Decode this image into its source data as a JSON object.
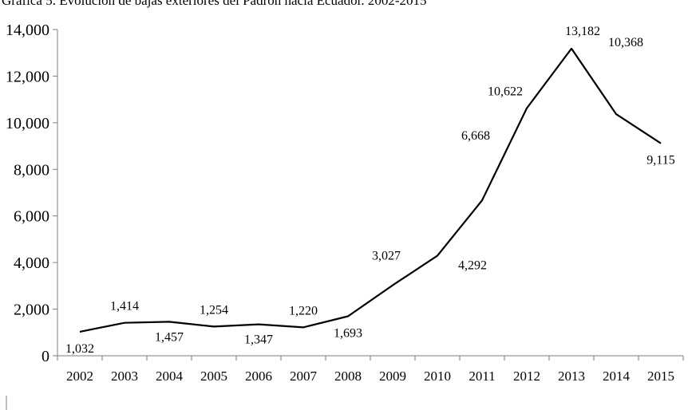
{
  "chart_data": {
    "type": "line",
    "title": "Gráfica 5. Evolución de bajas exteriores del Padrón hacia Ecuador. 2002-2015",
    "xlabel": "",
    "ylabel": "",
    "categories": [
      "2002",
      "2003",
      "2004",
      "2005",
      "2006",
      "2007",
      "2008",
      "2009",
      "2010",
      "2011",
      "2012",
      "2013",
      "2014",
      "2015"
    ],
    "values": [
      1032,
      1414,
      1457,
      1254,
      1347,
      1220,
      1693,
      3027,
      4292,
      6668,
      10622,
      13182,
      10368,
      9115
    ],
    "data_labels": [
      "1,032",
      "1,414",
      "1,457",
      "1,254",
      "1,347",
      "1,220",
      "1,693",
      "3,027",
      "4,292",
      "6,668",
      "10,622",
      "13,182",
      "10,368",
      "9,115"
    ],
    "ylim": [
      0,
      14000
    ],
    "yticks": [
      0,
      2000,
      4000,
      6000,
      8000,
      10000,
      12000,
      14000
    ],
    "ytick_labels": [
      "0",
      "2,000",
      "4,000",
      "6,000",
      "8,000",
      "10,000",
      "12,000",
      "14,000"
    ],
    "grid": false,
    "legend": "none",
    "line_color": "#000000"
  }
}
